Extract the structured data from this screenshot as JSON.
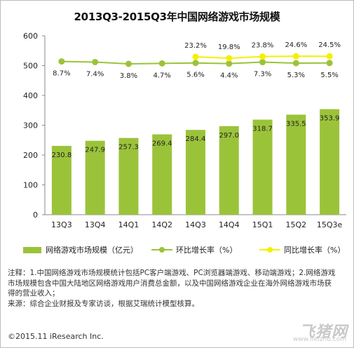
{
  "title": "2013Q3-2015Q3年中国网络游戏市场规模",
  "chart_data": {
    "type": "bar",
    "categories": [
      "13Q3",
      "13Q4",
      "14Q1",
      "14Q2",
      "14Q3",
      "14Q4",
      "15Q1",
      "15Q2",
      "15Q3e"
    ],
    "values": [
      230.8,
      247.9,
      257.3,
      269.4,
      284.4,
      297.0,
      318.7,
      335.5,
      353.9
    ],
    "value_labels": [
      "230.8",
      "247.9",
      "257.3",
      "269.4",
      "284.4",
      "297.0",
      "318.7",
      "335.5",
      "353.9"
    ],
    "ylim": [
      0,
      600
    ],
    "yticks": [
      "0",
      "100",
      "200",
      "300",
      "400",
      "500",
      "600"
    ],
    "bar_color": "#9bc33a",
    "series": [
      {
        "name": "环比增长率（%）",
        "values": [
          8.7,
          7.4,
          3.8,
          4.7,
          5.6,
          4.4,
          7.3,
          5.3,
          5.5
        ],
        "labels": [
          "8.7%",
          "7.4%",
          "3.8%",
          "4.7%",
          "5.6%",
          "4.4%",
          "7.3%",
          "5.3%",
          "5.5%"
        ],
        "color": "#9bc33a"
      },
      {
        "name": "同比增长率（%）",
        "values": [
          null,
          null,
          null,
          null,
          23.2,
          19.8,
          23.8,
          24.6,
          24.5
        ],
        "labels": [
          "",
          "",
          "",
          "",
          "23.2%",
          "19.8%",
          "23.8%",
          "24.6%",
          "24.5%"
        ],
        "color": "#ffff00"
      }
    ],
    "legend": [
      "网络游戏市场规模（亿元）",
      "环比增长率（%）",
      "同比增长率（%）"
    ],
    "legend_position": "bottom",
    "grid": false
  },
  "notes": [
    "注释：1.中国网络游戏市场规模统计包括PC客户端游戏、PC浏览器端游戏、移动端游戏；2.网络游戏",
    "市场规模包含中国大陆地区网络游戏用户消费总金额，以及中国网络游戏企业在海外网络游戏市场获",
    "得的营业收入；",
    "来源：综合企业财报及专家访谈，根据艾瑞统计模型核算。"
  ],
  "copyright": "©2015.11 iResearch Inc.",
  "watermark": "飞猪网",
  "watermark_url": "www.ifeizhu.com"
}
